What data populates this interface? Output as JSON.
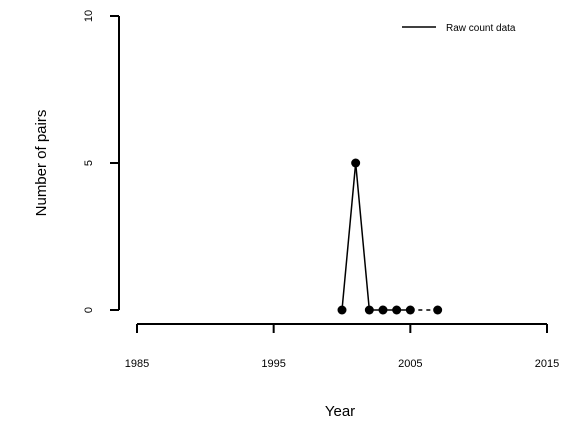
{
  "chart_data": {
    "type": "line",
    "xlabel": "Year",
    "ylabel": "Number of pairs",
    "xlim": [
      1985,
      2015
    ],
    "ylim": [
      0,
      10
    ],
    "x_ticks": [
      1985,
      1995,
      2005,
      2015
    ],
    "y_ticks": [
      0,
      5,
      10
    ],
    "x_tick_labels": [
      "1985",
      "1995",
      "2005",
      "2015"
    ],
    "y_tick_labels": [
      "0",
      "5",
      "10"
    ],
    "legend": {
      "position": "top-right",
      "entries": [
        "Raw count data"
      ]
    },
    "grid": false,
    "series": [
      {
        "name": "Raw count data",
        "x": [
          2000,
          2001,
          2002,
          2003,
          2004,
          2005,
          2007
        ],
        "y": [
          0,
          5,
          0,
          0,
          0,
          0,
          0
        ]
      }
    ]
  }
}
